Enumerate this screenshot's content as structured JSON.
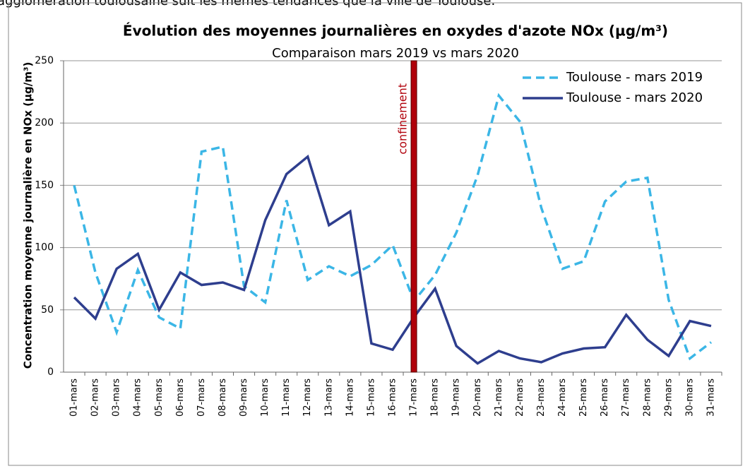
{
  "header_text": "agglomération toulousaine suit les mêmes tendances que la ville de Toulouse.",
  "chart_data": {
    "type": "line",
    "title": "Évolution des moyennes journalières en oxydes d'azote NOx (µg/m³)",
    "subtitle": "Comparaison mars 2019 vs mars 2020",
    "y_label": "Concentration moyenne journalière en NOx (µg/m³)",
    "categories": [
      "01-mars",
      "02-mars",
      "03-mars",
      "04-mars",
      "05-mars",
      "06-mars",
      "07-mars",
      "08-mars",
      "09-mars",
      "10-mars",
      "11-mars",
      "12-mars",
      "13-mars",
      "14-mars",
      "15-mars",
      "16-mars",
      "17-mars",
      "18-mars",
      "19-mars",
      "20-mars",
      "21-mars",
      "22-mars",
      "23-mars",
      "24-mars",
      "25-mars",
      "26-mars",
      "27-mars",
      "28-mars",
      "29-mars",
      "30-mars",
      "31-mars"
    ],
    "series": [
      {
        "name": "Toulouse - mars 2019",
        "color": "#3bb6e6",
        "dashed": true,
        "values": [
          150,
          80,
          32,
          82,
          44,
          35,
          177,
          181,
          69,
          56,
          138,
          74,
          85,
          77,
          86,
          102,
          57,
          78,
          112,
          158,
          222,
          201,
          132,
          83,
          89,
          137,
          153,
          156,
          58,
          11,
          24
        ]
      },
      {
        "name": "Toulouse - mars 2020",
        "color": "#2e3e8e",
        "dashed": false,
        "values": [
          60,
          43,
          83,
          95,
          50,
          80,
          70,
          72,
          66,
          122,
          159,
          173,
          118,
          129,
          23,
          18,
          44,
          67,
          21,
          7,
          17,
          11,
          8,
          15,
          19,
          20,
          46,
          26,
          13,
          41,
          37
        ]
      }
    ],
    "annotation": {
      "text": "confinement",
      "category": "17-mars",
      "color": "#b0000a"
    },
    "ylim": [
      0,
      250
    ],
    "yticks": [
      0,
      50,
      100,
      150,
      200,
      250
    ],
    "grid": true,
    "legend": "top-right"
  }
}
